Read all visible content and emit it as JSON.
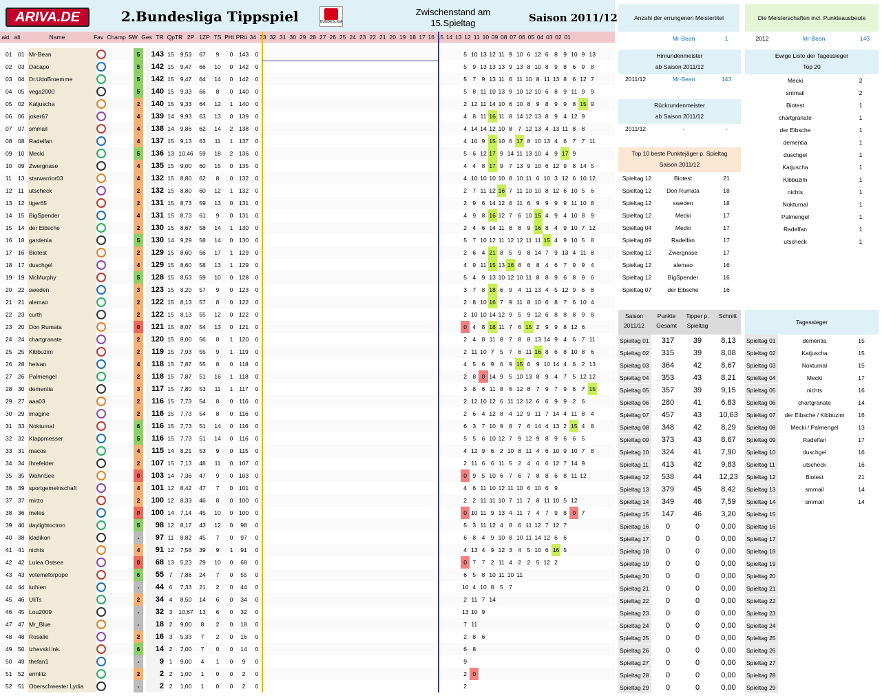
{
  "header": {
    "logo": "ARIVA.DE",
    "title": "2.Bundesliga Tippspiel",
    "bl_text": "BUNDESLIGA",
    "zw1": "Zwischenstand am",
    "zw2": "15.Spieltag",
    "season": "Saison 2011/12"
  },
  "columns": {
    "akt": "akt",
    "alt": "alt",
    "name": "Name",
    "fav": "Fav",
    "champ": "Champ",
    "sw": "SW",
    "ges": "Ges",
    "tr": "TR",
    "qtr": "QpTR",
    "p2": "2P",
    "zp": "1ZP",
    "ts": "TS",
    "phi": "PHi",
    "pru": "PRü",
    "rueck": [
      "34",
      "33",
      "32",
      "31",
      "30",
      "29",
      "28",
      "27",
      "26",
      "25",
      "24",
      "23",
      "22",
      "21",
      "20",
      "19",
      "18"
    ],
    "hin": [
      "17",
      "16",
      "15",
      "14",
      "13",
      "12",
      "11",
      "10",
      "09",
      "08",
      "07",
      "06",
      "05",
      "04",
      "03",
      "02",
      "01"
    ]
  },
  "rows": [
    [
      "01",
      "01",
      "Mr-Bean",
      "5",
      "143",
      "15",
      "9,53",
      "67",
      "9",
      "0",
      "143",
      "0",
      "5 10 13 12 11 9 10 6 12 6 8 9 10 9 13"
    ],
    [
      "02",
      "03",
      "Dacapo",
      "5",
      "142",
      "15",
      "9,47",
      "66",
      "10",
      "0",
      "142",
      "0",
      "5 9 13 13 13 9 13 8 10 8 9 8 6 9 8"
    ],
    [
      "03",
      "04",
      "Dr.UdoBroemme",
      "5",
      "142",
      "15",
      "9,47",
      "64",
      "14",
      "0",
      "142",
      "0",
      "5 7 9 13 11 6 11 10 8 11 13 8 6 12 7"
    ],
    [
      "04",
      "05",
      "vega2000",
      "5",
      "140",
      "15",
      "9,33",
      "66",
      "8",
      "0",
      "140",
      "0",
      "5 8 11 10 13 9 10 12 10 6 8 9 11 9 9"
    ],
    [
      "05",
      "02",
      "Katjuscha",
      "2",
      "140",
      "15",
      "9,33",
      "64",
      "12",
      "1",
      "140",
      "0",
      "2 12 11 14 10 6 10 8 9 8 9 9 8 15 9"
    ],
    [
      "06",
      "06",
      "joker67",
      "4",
      "139",
      "14",
      "9,93",
      "63",
      "13",
      "0",
      "139",
      "0",
      "4 8 11 16 11 8 14 12 13 8 9 4 12 9"
    ],
    [
      "07",
      "07",
      "smmail",
      "4",
      "138",
      "14",
      "9,86",
      "62",
      "14",
      "2",
      "138",
      "0",
      "4 14 14 12 10 8 7 12 13 4 13 11 8 8"
    ],
    [
      "08",
      "08",
      "Radelfan",
      "4",
      "137",
      "15",
      "9,13",
      "63",
      "11",
      "1",
      "137",
      "0",
      "4 10 9 15 10 6 17 8 10 13 4 6 7 7 11"
    ],
    [
      "09",
      "10",
      "Mecki",
      "5",
      "136",
      "13",
      "10,46",
      "59",
      "18",
      "2",
      "136",
      "0",
      "5 6 12 17 9 14 11 13 10 4 9 17 9"
    ],
    [
      "10",
      "09",
      "Zwergnase",
      "4",
      "135",
      "15",
      "9,00",
      "60",
      "15",
      "0",
      "135",
      "0",
      "4 4 8 17 9 7 13 9 10 6 12 9 8 14 5"
    ],
    [
      "11",
      "13",
      "starwarrior03",
      "4",
      "132",
      "15",
      "8,80",
      "62",
      "8",
      "0",
      "132",
      "0",
      "4 10 10 10 10 8 10 11 6 10 3 12 6 10 12"
    ],
    [
      "12",
      "11",
      "utscheck",
      "2",
      "132",
      "15",
      "8,80",
      "60",
      "12",
      "1",
      "132",
      "0",
      "2 7 11 12 16 7 11 10 10 8 12 6 10 5 6"
    ],
    [
      "13",
      "12",
      "tiger65",
      "2",
      "131",
      "15",
      "8,73",
      "59",
      "13",
      "0",
      "131",
      "0",
      "2 9 6 14 12 6 11 6 9 9 9 9 11 10 8"
    ],
    [
      "14",
      "15",
      "BigSpender",
      "4",
      "131",
      "15",
      "8,73",
      "61",
      "9",
      "0",
      "131",
      "0",
      "4 9 8 16 12 7 6 10 15 4 9 4 10 8 9"
    ],
    [
      "15",
      "14",
      "der Eibsche",
      "2",
      "130",
      "15",
      "8,67",
      "58",
      "14",
      "1",
      "130",
      "0",
      "2 4 6 14 11 8 8 9 16 8 4 9 10 7 12"
    ],
    [
      "16",
      "18",
      "gardenia",
      "5",
      "130",
      "14",
      "9,29",
      "58",
      "14",
      "0",
      "130",
      "0",
      "5 7 10 12 11 12 12 11 11 15 4 9 10 5 8"
    ],
    [
      "17",
      "16",
      "Biotest",
      "2",
      "129",
      "15",
      "8,60",
      "56",
      "17",
      "1",
      "129",
      "0",
      "2 6 4 21 8 5 9 8 14 7 9 13 4 11 8"
    ],
    [
      "18",
      "17",
      "duschgel",
      "4",
      "129",
      "15",
      "8,60",
      "58",
      "13",
      "1",
      "129",
      "0",
      "4 9 11 15 13 16 8 6 8 4 6 7 9 9 4"
    ],
    [
      "19",
      "19",
      "McMurphy",
      "5",
      "128",
      "15",
      "8,53",
      "59",
      "10",
      "0",
      "128",
      "0",
      "5 4 9 13 10 12 10 11 8 8 9 6 8 9 6"
    ],
    [
      "20",
      "22",
      "sweden",
      "3",
      "123",
      "15",
      "8,20",
      "57",
      "9",
      "0",
      "123",
      "0",
      "3 7 8 18 6 9 4 11 13 4 5 12 9 6 8"
    ],
    [
      "21",
      "21",
      "alemao",
      "2",
      "122",
      "15",
      "8,13",
      "57",
      "8",
      "0",
      "122",
      "0",
      "2 8 10 16 7 9 11 8 10 6 8 7 6 10 4"
    ],
    [
      "22",
      "23",
      "curth",
      "2",
      "122",
      "15",
      "8,13",
      "55",
      "12",
      "0",
      "122",
      "0",
      "2 10 10 14 12 9 5 9 12 6 8 8 8 9 8"
    ],
    [
      "23",
      "20",
      "Don Rumata",
      "0",
      "121",
      "15",
      "8,07",
      "54",
      "13",
      "0",
      "121",
      "0",
      "0 4 8 18 11 7 6 15 2 9 9 8 12 6"
    ],
    [
      "24",
      "24",
      "chartgranate",
      "2",
      "120",
      "15",
      "8,00",
      "56",
      "8",
      "1",
      "120",
      "0",
      "2 4 8 11 8 7 8 8 13 14 9 4 6 7 11"
    ],
    [
      "25",
      "25",
      "Kibbuzim",
      "2",
      "119",
      "15",
      "7,93",
      "55",
      "9",
      "1",
      "119",
      "0",
      "2 11 10 7 5 7 6 11 16 8 6 8 10 8 6"
    ],
    [
      "26",
      "28",
      "heisan",
      "4",
      "118",
      "15",
      "7,87",
      "55",
      "8",
      "0",
      "118",
      "0",
      "4 5 6 9 6 9 15 6 9 10 14 4 6 2 13"
    ],
    [
      "27",
      "26",
      "Palmengel",
      "2",
      "118",
      "15",
      "7,87",
      "51",
      "16",
      "1",
      "118",
      "0",
      "2 8 0 14 9 5 10 13 8 9 4 7 5 12 12"
    ],
    [
      "28",
      "30",
      "dementia",
      "3",
      "117",
      "15",
      "7,80",
      "53",
      "11",
      "1",
      "117",
      "0",
      "3 8 6 11 8 6 12 8 7 9 7 9 6 7 15"
    ],
    [
      "29",
      "27",
      "aaa03",
      "2",
      "116",
      "15",
      "7,73",
      "54",
      "8",
      "0",
      "116",
      "0",
      "2 12 10 12 6 11 12 12 6 6 9 9 2 6"
    ],
    [
      "30",
      "29",
      "imagine",
      "2",
      "116",
      "15",
      "7,73",
      "54",
      "8",
      "0",
      "116",
      "0",
      "2 6 4 12 8 4 12 9 11 7 14 4 11 8 4"
    ],
    [
      "31",
      "33",
      "Nokturnal",
      "6",
      "116",
      "15",
      "7,73",
      "51",
      "14",
      "0",
      "116",
      "0",
      "6 3 7 10 9 8 7 6 14 4 13 2 15 4 8"
    ],
    [
      "32",
      "32",
      "Klappmesser",
      "5",
      "116",
      "15",
      "7,73",
      "51",
      "14",
      "0",
      "116",
      "0",
      "5 5 6 10 12 7 9 12 9 8 9 6 6 5"
    ],
    [
      "33",
      "31",
      "macos",
      "4",
      "115",
      "14",
      "8,21",
      "53",
      "9",
      "0",
      "115",
      "0",
      "4 12 9 6 2 10 8 11 4 6 10 9 10 7 8"
    ],
    [
      "34",
      "34",
      "Ihrefelder",
      "2",
      "107",
      "15",
      "7,13",
      "48",
      "11",
      "0",
      "107",
      "0",
      "2 11 6 6 11 5 2 4 6 6 12 7 14 9"
    ],
    [
      "35",
      "35",
      "WahnSee",
      "0",
      "103",
      "14",
      "7,36",
      "47",
      "9",
      "0",
      "103",
      "0",
      "0 9 5 10 6 7 6 7 8 8 6 8 11 12"
    ],
    [
      "36",
      "39",
      "sportgemeinschaft",
      "4",
      "101",
      "12",
      "8,42",
      "47",
      "7",
      "0",
      "101",
      "0",
      "4 6 11 10 12 11 10 6 10 6 9"
    ],
    [
      "37",
      "37",
      "mirzo",
      "2",
      "100",
      "12",
      "8,33",
      "46",
      "8",
      "0",
      "100",
      "0",
      "2 2 11 11 10 7 11 7 8 11 10 5 12"
    ],
    [
      "38",
      "36",
      "meles",
      "0",
      "100",
      "14",
      "7,14",
      "45",
      "10",
      "0",
      "100",
      "0",
      "0 10 11 9 13 4 11 7 4 7 9 8 0 7"
    ],
    [
      "39",
      "40",
      "daylightoctron",
      "5",
      "98",
      "12",
      "8,17",
      "43",
      "12",
      "0",
      "98",
      "0",
      "5 3 11 12 4 8 6 11 12 7 12 7"
    ],
    [
      "40",
      "38",
      "kladikon",
      "-",
      "97",
      "11",
      "8,82",
      "45",
      "7",
      "0",
      "97",
      "0",
      "6 8 4 9 10 8 10 11 14 12 6 6"
    ],
    [
      "41",
      "41",
      "nichts",
      "4",
      "91",
      "12",
      "7,58",
      "39",
      "9",
      "1",
      "91",
      "0",
      "4 13 4 9 12 3 4 5 10 6 16 5"
    ],
    [
      "42",
      "42",
      "Lulea Ostsee",
      "0",
      "68",
      "13",
      "5,23",
      "29",
      "10",
      "0",
      "68",
      "0",
      "0 7 7 2 11 4 2 2 5 12 2"
    ],
    [
      "43",
      "43",
      "votemeforpope",
      "6",
      "55",
      "7",
      "7,86",
      "24",
      "7",
      "0",
      "55",
      "0",
      "6 5 8 10 11 10 11"
    ],
    [
      "44",
      "44",
      "luthien",
      "-",
      "44",
      "6",
      "7,33",
      "21",
      "2",
      "0",
      "44",
      "0",
      "10 4 10 8 5 7"
    ],
    [
      "45",
      "46",
      "UliTs",
      "2",
      "34",
      "4",
      "8,50",
      "14",
      "6",
      "0",
      "34",
      "0",
      "2 11 7 14"
    ],
    [
      "46",
      "45",
      "Lou2009",
      "-",
      "32",
      "3",
      "10,67",
      "13",
      "6",
      "0",
      "32",
      "0",
      "13 10 9"
    ],
    [
      "47",
      "47",
      "Mr_Blue",
      "-",
      "18",
      "2",
      "9,00",
      "8",
      "2",
      "0",
      "18",
      "0",
      "7 11"
    ],
    [
      "48",
      "48",
      "Rosalie",
      "2",
      "16",
      "3",
      "5,33",
      "7",
      "2",
      "0",
      "16",
      "0",
      "2 8 6"
    ],
    [
      "49",
      "50",
      "izhevski ink.",
      "6",
      "14",
      "2",
      "7,00",
      "7",
      "0",
      "0",
      "14",
      "0",
      "6 8"
    ],
    [
      "50",
      "49",
      "thefan1",
      "-",
      "9",
      "1",
      "9,00",
      "4",
      "1",
      "0",
      "9",
      "0",
      "9"
    ],
    [
      "51",
      "52",
      "ermlitz",
      "2",
      "2",
      "2",
      "1,00",
      "1",
      "0",
      "0",
      "2",
      "0",
      "2 0"
    ],
    [
      "52",
      "51",
      "Oberschwester Lydia",
      "-",
      "2",
      "2",
      "1,00",
      "1",
      "0",
      "0",
      "2",
      "0",
      "2"
    ]
  ],
  "panel_meister": {
    "title": "Anzahl der errungenen Meistertitel",
    "name": "Mr-Bean",
    "count": "1"
  },
  "panel_meister_pkt": {
    "title": "Die Meisterschaften incl. Punkteausbeute",
    "year": "2012",
    "name": "Mr-Bean",
    "pts": "143"
  },
  "hinrunde": {
    "t1": "Hinrundenmeister",
    "t2": "ab Saison 2011/12",
    "season": "2011/12",
    "name": "Mr-Bean",
    "pts": "143"
  },
  "rueckrunde": {
    "t1": "Rückrundenmeister",
    "t2": "ab Saison 2011/12",
    "season": "2011/12",
    "name": "-",
    "pts": "-"
  },
  "ewige": {
    "t1": "Ewige Liste der Tagessieger",
    "t2": "Top 20",
    "items": [
      [
        "Mecki",
        "2"
      ],
      [
        "smmail",
        "2"
      ],
      [
        "Biotest",
        "1"
      ],
      [
        "chartgranate",
        "1"
      ],
      [
        "der Eibsche",
        "1"
      ],
      [
        "dementia",
        "1"
      ],
      [
        "duschgel",
        "1"
      ],
      [
        "Katjuscha",
        "1"
      ],
      [
        "Kibbuzim",
        "1"
      ],
      [
        "nichts",
        "1"
      ],
      [
        "Nokturnal",
        "1"
      ],
      [
        "Palmengel",
        "1"
      ],
      [
        "Radelfan",
        "1"
      ],
      [
        "utscheck",
        "1"
      ]
    ]
  },
  "top10": {
    "t1": "Top 10 beste Punktejäger p. Spieltag",
    "t2": "Saison 2011/12",
    "items": [
      [
        "Spieltag 12",
        "Biotest",
        "21"
      ],
      [
        "Spieltag 12",
        "Don Rumata",
        "18"
      ],
      [
        "Spieltag 12",
        "sweden",
        "18"
      ],
      [
        "Spieltag 12",
        "Mecki",
        "17"
      ],
      [
        "Spieltag 04",
        "Mecki",
        "17"
      ],
      [
        "Spieltag 09",
        "Radelfan",
        "17"
      ],
      [
        "Spieltag 12",
        "Zwergnase",
        "17"
      ],
      [
        "Spieltag 12",
        "alemao",
        "16"
      ],
      [
        "Spieltag 12",
        "BigSpender",
        "16"
      ],
      [
        "Spieltag 07",
        "der Eibsche",
        "16"
      ]
    ]
  },
  "saison": {
    "h1": "Saison 2011/12",
    "h2": "Punkte Gesamt",
    "h3": "Tipper p. Spieltag",
    "h4": "Schnitt",
    "items": [
      [
        "Spieltag 01",
        "317",
        "39",
        "8,13"
      ],
      [
        "Spieltag 02",
        "315",
        "39",
        "8,08"
      ],
      [
        "Spieltag 03",
        "364",
        "42",
        "8,67"
      ],
      [
        "Spieltag 04",
        "353",
        "43",
        "8,21"
      ],
      [
        "Spieltag 05",
        "357",
        "39",
        "9,15"
      ],
      [
        "Spieltag 06",
        "280",
        "41",
        "6,83"
      ],
      [
        "Spieltag 07",
        "457",
        "43",
        "10,63"
      ],
      [
        "Spieltag 08",
        "348",
        "42",
        "8,29"
      ],
      [
        "Spieltag 09",
        "373",
        "43",
        "8,67"
      ],
      [
        "Spieltag 10",
        "324",
        "41",
        "7,90"
      ],
      [
        "Spieltag 11",
        "413",
        "42",
        "9,83"
      ],
      [
        "Spieltag 12",
        "538",
        "44",
        "12,23"
      ],
      [
        "Spieltag 13",
        "379",
        "45",
        "8,42"
      ],
      [
        "Spieltag 14",
        "349",
        "46",
        "7,59"
      ],
      [
        "Spieltag 15",
        "147",
        "46",
        "3,20"
      ],
      [
        "Spieltag 16",
        "0",
        "0",
        "0,00"
      ],
      [
        "Spieltag 17",
        "0",
        "0",
        "0,00"
      ],
      [
        "Spieltag 18",
        "0",
        "0",
        "0,00"
      ],
      [
        "Spieltag 19",
        "0",
        "0",
        "0,00"
      ],
      [
        "Spieltag 20",
        "0",
        "0",
        "0,00"
      ],
      [
        "Spieltag 21",
        "0",
        "0",
        "0,00"
      ],
      [
        "Spieltag 22",
        "0",
        "0",
        "0,00"
      ],
      [
        "Spieltag 23",
        "0",
        "0",
        "0,00"
      ],
      [
        "Spieltag 24",
        "0",
        "0",
        "0,00"
      ],
      [
        "Spieltag 25",
        "0",
        "0",
        "0,00"
      ],
      [
        "Spieltag 26",
        "0",
        "0",
        "0,00"
      ],
      [
        "Spieltag 27",
        "0",
        "0",
        "0,00"
      ],
      [
        "Spieltag 28",
        "0",
        "0",
        "0,00"
      ],
      [
        "Spieltag 29",
        "0",
        "0",
        "0,00"
      ]
    ]
  },
  "tagessieger": {
    "title": "Tagessieger",
    "items": [
      [
        "Spieltag 01",
        "dementia",
        "15"
      ],
      [
        "Spieltag 02",
        "Katjuscha",
        "15"
      ],
      [
        "Spieltag 03",
        "Nokturnal",
        "15"
      ],
      [
        "Spieltag 04",
        "Mecki",
        "17"
      ],
      [
        "Spieltag 05",
        "nichts",
        "16"
      ],
      [
        "Spieltag 06",
        "chartgranate",
        "14"
      ],
      [
        "Spieltag 07",
        "der Eibsche / Kibbuzim",
        "16"
      ],
      [
        "Spieltag 08",
        "Mecki / Palmengel",
        "13"
      ],
      [
        "Spieltag 09",
        "Radelfan",
        "17"
      ],
      [
        "Spieltag 10",
        "duschgel",
        "16"
      ],
      [
        "Spieltag 11",
        "utscheck",
        "16"
      ],
      [
        "Spieltag 12",
        "Biotest",
        "21"
      ],
      [
        "Spieltag 13",
        "smmail",
        "14"
      ],
      [
        "Spieltag 14",
        "smmail",
        "14"
      ],
      [
        "Spieltag 15",
        "",
        ""
      ],
      [
        "Spieltag 16",
        "",
        ""
      ],
      [
        "Spieltag 17",
        "",
        ""
      ],
      [
        "Spieltag 18",
        "",
        ""
      ],
      [
        "Spieltag 19",
        "",
        ""
      ],
      [
        "Spieltag 20",
        "",
        ""
      ],
      [
        "Spieltag 21",
        "",
        ""
      ],
      [
        "Spieltag 22",
        "",
        ""
      ],
      [
        "Spieltag 23",
        "",
        ""
      ],
      [
        "Spieltag 24",
        "",
        ""
      ],
      [
        "Spieltag 25",
        "",
        ""
      ],
      [
        "Spieltag 26",
        "",
        ""
      ],
      [
        "Spieltag 27",
        "",
        ""
      ],
      [
        "Spieltag 28",
        "",
        ""
      ],
      [
        "Spieltag 29",
        "",
        ""
      ]
    ]
  },
  "colors": {
    "sw_high": "#8fce6a",
    "sw_mid": "#f2b179",
    "sw_low": "#e86a5a",
    "header_bg": "#dff0f6",
    "hdr_row": "#f0c8cc",
    "name_bg": "#f2ead8",
    "highlight": "#c6ef5a"
  }
}
